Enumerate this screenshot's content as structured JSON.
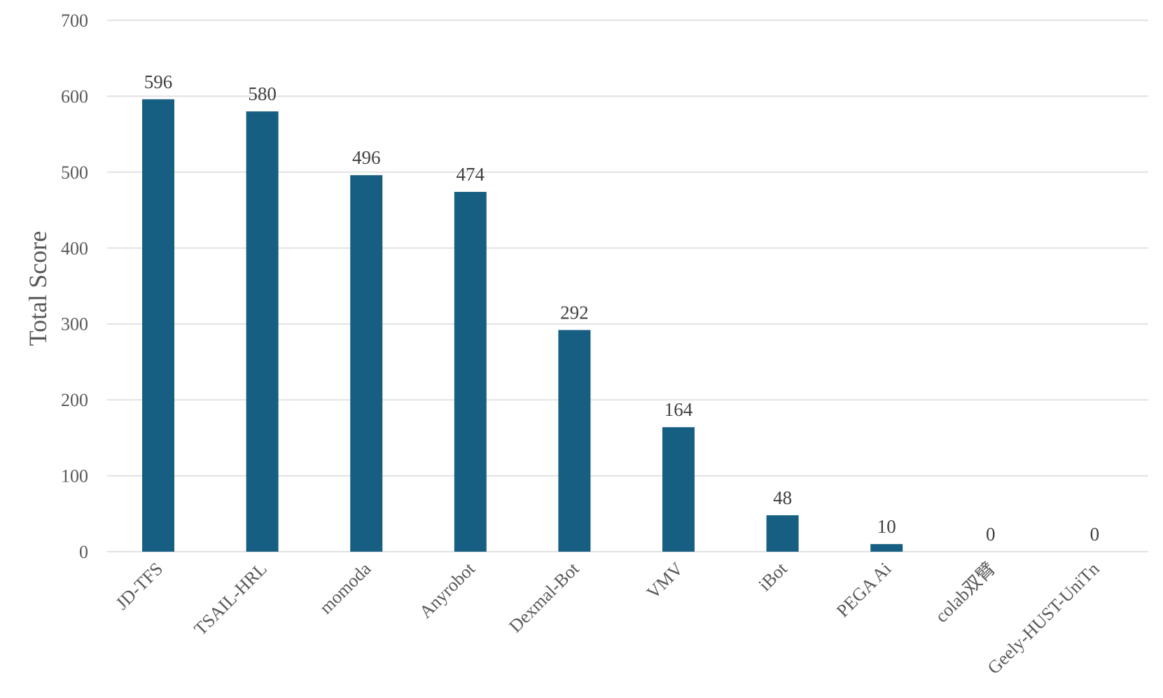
{
  "chart_data": {
    "type": "bar",
    "title": "",
    "xlabel": "",
    "ylabel": "Total Score",
    "categories": [
      "JD-TFS",
      "TSAIL-HRL",
      "momoda",
      "Anyrobot",
      "Dexmal-Bot",
      "VMV",
      "iBot",
      "PEGA Ai",
      "colab双臂",
      "Geely-HUST-UniTn"
    ],
    "values": [
      596,
      580,
      496,
      474,
      292,
      164,
      48,
      10,
      0,
      0
    ],
    "ylim": [
      0,
      700
    ],
    "yticks": [
      0,
      100,
      200,
      300,
      400,
      500,
      600,
      700
    ],
    "grid": true,
    "data_labels": true,
    "bar_color": "#175f82",
    "grid_color": "#d9d9d9"
  }
}
